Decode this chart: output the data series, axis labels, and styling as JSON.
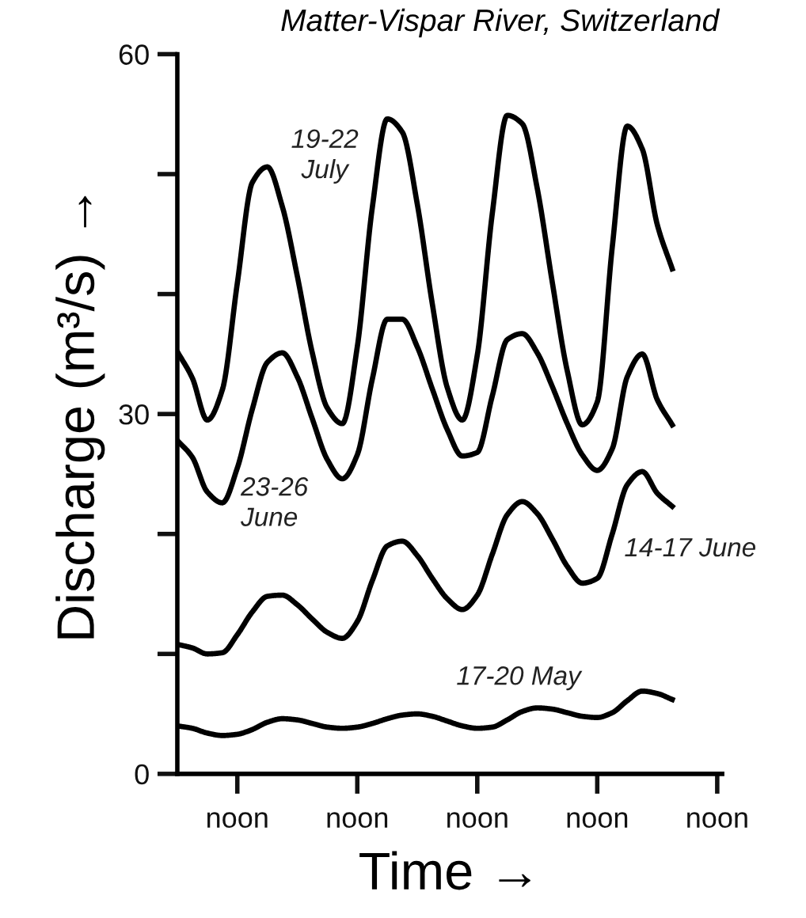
{
  "chart_data": {
    "type": "line",
    "title": "Matter-Vispar River, Switzerland",
    "xlabel": "Time →",
    "ylabel": "Discharge (m³/s) →",
    "categories": [
      null,
      null,
      null,
      null,
      "noon",
      null,
      null,
      null,
      null,
      null,
      null,
      null,
      "noon",
      null,
      null,
      null,
      null,
      null,
      null,
      null,
      "noon",
      null,
      null,
      null,
      null,
      null,
      null,
      null,
      "noon",
      null,
      null,
      null,
      null,
      null,
      null,
      null,
      "noon"
    ],
    "ylim": [
      0,
      60
    ],
    "yticks": [
      0,
      {
        "value": 10,
        "label": null
      },
      {
        "value": 20,
        "label": null
      },
      30,
      {
        "value": 40,
        "label": null
      },
      {
        "value": 50,
        "label": null
      },
      60
    ],
    "grid": false,
    "legend": false,
    "marker": "none",
    "line_style": "solid",
    "series": [
      {
        "name": "19-22\nJuly",
        "color": "#000000",
        "values": [
          35.2,
          33.0,
          29.5,
          32.0,
          40.9,
          49.3,
          50.6,
          47.3,
          41.5,
          35.1,
          30.5,
          29.2,
          35.6,
          47.2,
          54.6,
          53.5,
          47.5,
          39.2,
          32.2,
          29.5,
          34.9,
          46.7,
          54.9,
          54.2,
          48.8,
          41.0,
          33.6,
          29.1,
          31.0,
          43.9,
          54.0,
          52.1,
          45.8,
          42.1,
          null,
          null,
          null
        ]
      },
      {
        "name": "23-26\nJune",
        "color": "#000000",
        "values": [
          27.8,
          26.4,
          23.5,
          22.6,
          25.5,
          30.4,
          34.3,
          35.1,
          33.1,
          29.6,
          26.2,
          24.6,
          26.6,
          32.9,
          37.9,
          37.9,
          35.6,
          32.1,
          28.7,
          26.5,
          26.8,
          31.5,
          36.2,
          36.7,
          35.1,
          32.3,
          29.2,
          26.6,
          25.3,
          27.1,
          33.1,
          35.0,
          31.2,
          29.1,
          null,
          null,
          null
        ]
      },
      {
        "name": "14-17 June",
        "color": "#000000",
        "values": [
          10.8,
          10.5,
          10.0,
          10.1,
          11.6,
          13.5,
          14.8,
          14.9,
          14.1,
          12.9,
          11.8,
          11.3,
          12.7,
          16.1,
          19.0,
          19.4,
          18.2,
          16.3,
          14.6,
          13.7,
          14.9,
          18.3,
          21.6,
          22.7,
          21.7,
          19.6,
          17.3,
          15.9,
          16.3,
          20.0,
          24.1,
          25.2,
          23.4,
          22.3,
          null,
          null,
          null
        ]
      },
      {
        "name": "17-20 May",
        "color": "#000000",
        "values": [
          4.0,
          3.8,
          3.4,
          3.2,
          3.3,
          3.7,
          4.3,
          4.6,
          4.5,
          4.2,
          3.9,
          3.8,
          3.9,
          4.2,
          4.6,
          4.9,
          5.0,
          4.8,
          4.4,
          4.0,
          3.8,
          3.9,
          4.5,
          5.2,
          5.5,
          5.4,
          5.1,
          4.8,
          4.7,
          5.1,
          6.1,
          6.9,
          6.7,
          6.2,
          null,
          null,
          null
        ]
      }
    ]
  }
}
